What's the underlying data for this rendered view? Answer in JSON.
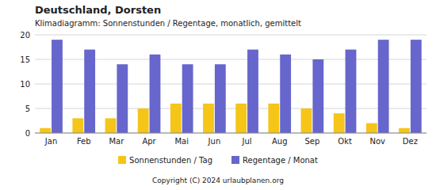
{
  "chart_data": {
    "type": "bar",
    "title": "Deutschland, Dorsten",
    "subtitle": "Klimadiagramm: Sonnenstunden / Regentage, monatlich, gemittelt",
    "annotations": [
      "Copyright (C) 2024 urlaubplanen.org"
    ],
    "categories": [
      "Jan",
      "Feb",
      "Mar",
      "Apr",
      "Mai",
      "Jun",
      "Jul",
      "Aug",
      "Sep",
      "Okt",
      "Nov",
      "Dez"
    ],
    "series": [
      {
        "name": "Sonnenstunden / Tag",
        "color": "#F5C518",
        "values": [
          1,
          3,
          3,
          5,
          6,
          6,
          6,
          6,
          5,
          4,
          2,
          1
        ]
      },
      {
        "name": "Regentage / Monat",
        "color": "#6666CC",
        "values": [
          19,
          17,
          14,
          16,
          14,
          14,
          17,
          16,
          15,
          17,
          19,
          19
        ]
      }
    ],
    "ylim": [
      0,
      20
    ],
    "yticks": [
      0,
      5,
      10,
      15,
      20
    ],
    "grid": true,
    "legend": "bottom"
  }
}
